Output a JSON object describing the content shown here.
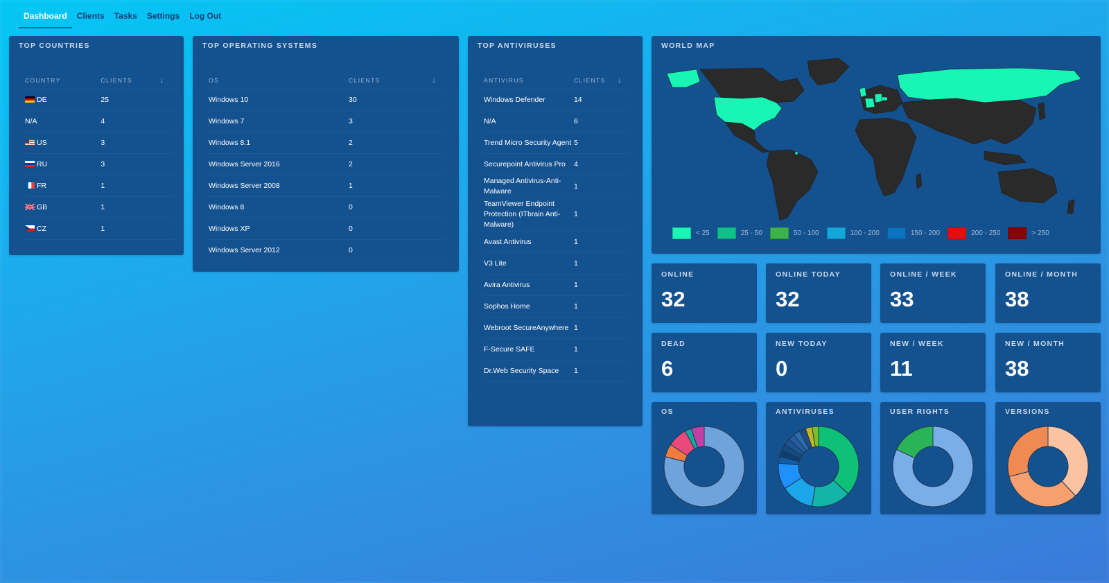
{
  "nav": {
    "items": [
      "Dashboard",
      "Clients",
      "Tasks",
      "Settings",
      "Log Out"
    ]
  },
  "countries": {
    "title": "TOP COUNTRIES",
    "headers": [
      "COUNTRY",
      "CLIENTS",
      "↓"
    ],
    "rows": [
      {
        "name": "DE",
        "value": "25",
        "flag": "de"
      },
      {
        "name": "N/A",
        "value": "4",
        "flag": ""
      },
      {
        "name": "US",
        "value": "3",
        "flag": "us"
      },
      {
        "name": "RU",
        "value": "3",
        "flag": "ru"
      },
      {
        "name": "FR",
        "value": "1",
        "flag": "fr"
      },
      {
        "name": "GB",
        "value": "1",
        "flag": "gb"
      },
      {
        "name": "CZ",
        "value": "1",
        "flag": "cz"
      }
    ]
  },
  "os": {
    "title": "TOP OPERATING SYSTEMS",
    "headers": [
      "OS",
      "CLIENTS",
      "↓"
    ],
    "rows": [
      {
        "name": "Windows 10",
        "value": "30"
      },
      {
        "name": "Windows 7",
        "value": "3"
      },
      {
        "name": "Windows 8.1",
        "value": "2"
      },
      {
        "name": "Windows Server 2016",
        "value": "2"
      },
      {
        "name": "Windows Server 2008",
        "value": "1"
      },
      {
        "name": "Windows 8",
        "value": "0"
      },
      {
        "name": "Windows XP",
        "value": "0"
      },
      {
        "name": "Windows Server 2012",
        "value": "0"
      }
    ]
  },
  "av": {
    "title": "TOP ANTIVIRUSES",
    "headers": [
      "ANTIVIRUS",
      "CLIENTS",
      "↓"
    ],
    "rows": [
      {
        "name": "Windows Defender",
        "value": "14"
      },
      {
        "name": "N/A",
        "value": "6"
      },
      {
        "name": "Trend Micro Security Agent",
        "value": "5"
      },
      {
        "name": "Securepoint Antivirus Pro",
        "value": "4"
      },
      {
        "name": "Managed Antivirus-Anti-Malware",
        "value": "1"
      },
      {
        "name": "TeamViewer Endpoint Protection (ITbrain Anti-Malware)",
        "value": "1"
      },
      {
        "name": "Avast Antivirus",
        "value": "1"
      },
      {
        "name": "V3 Lite",
        "value": "1"
      },
      {
        "name": "Avira Antivirus",
        "value": "1"
      },
      {
        "name": "Sophos Home",
        "value": "1"
      },
      {
        "name": "Webroot SecureAnywhere",
        "value": "1"
      },
      {
        "name": "F-Secure SAFE",
        "value": "1"
      },
      {
        "name": "Dr.Web Security Space",
        "value": "1"
      }
    ]
  },
  "map": {
    "title": "WORLD MAP",
    "land_color": "#2a2a2a",
    "highlight_color": "#19f5b4",
    "legend": [
      {
        "label": "< 25",
        "color": "#19f5b4"
      },
      {
        "label": "25 - 50",
        "color": "#0fc08a"
      },
      {
        "label": "50 - 100",
        "color": "#3cb34a"
      },
      {
        "label": "100 - 200",
        "color": "#12a7d8"
      },
      {
        "label": "150 - 200",
        "color": "#0d72c1"
      },
      {
        "label": "200 - 250",
        "color": "#e80c0c"
      },
      {
        "label": "> 250",
        "color": "#8b0000"
      }
    ]
  },
  "stats": [
    {
      "label": "ONLINE",
      "value": "32"
    },
    {
      "label": "ONLINE TODAY",
      "value": "32"
    },
    {
      "label": "ONLINE / WEEK",
      "value": "33"
    },
    {
      "label": "ONLINE / MONTH",
      "value": "38"
    },
    {
      "label": "DEAD",
      "value": "6"
    },
    {
      "label": "NEW TODAY",
      "value": "0"
    },
    {
      "label": "NEW / WEEK",
      "value": "11"
    },
    {
      "label": "NEW / MONTH",
      "value": "38"
    }
  ],
  "chart_data": [
    {
      "type": "pie",
      "title": "OS",
      "values": [
        30,
        2,
        3,
        1,
        2
      ],
      "colors": [
        "#6fa3dc",
        "#ef7b3f",
        "#e94a7b",
        "#18a7a0",
        "#c140a8"
      ]
    },
    {
      "type": "pie",
      "title": "ANTIVIRUSES",
      "values": [
        14,
        6,
        5,
        4,
        1,
        1,
        1,
        1,
        1,
        1,
        1,
        1,
        1
      ],
      "colors": [
        "#0fc078",
        "#12b5a8",
        "#1aa6e8",
        "#1e90ff",
        "#0e5ea8",
        "#0f3f70",
        "#174a80",
        "#1b5592",
        "#235ea0",
        "#2b6aad",
        "#1c4d86",
        "#c4b820",
        "#7bbf2a"
      ]
    },
    {
      "type": "pie",
      "title": "USER RIGHTS",
      "values": [
        82,
        18
      ],
      "colors": [
        "#7aaee8",
        "#2bb357"
      ]
    },
    {
      "type": "pie",
      "title": "VERSIONS",
      "values": [
        38,
        33,
        29
      ],
      "colors": [
        "#fcc3a2",
        "#f6a070",
        "#f08a52"
      ]
    }
  ]
}
